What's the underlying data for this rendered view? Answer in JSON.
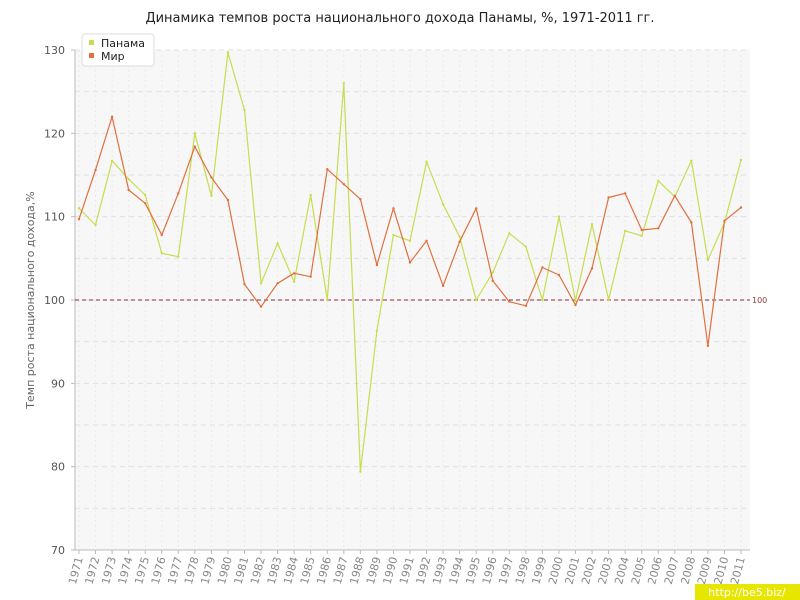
{
  "chart_data": {
    "type": "line",
    "title": "Динамика темпов роста национального дохода Панамы, %, 1971-2011 гг.",
    "ylabel": "Темп роста национального дохода,%",
    "xlabel": "",
    "ylim": [
      70,
      130
    ],
    "yticks": [
      70,
      80,
      90,
      100,
      110,
      120,
      130
    ],
    "grid": true,
    "legend_position": "top-left",
    "x": [
      "1971",
      "1972",
      "1973",
      "1974",
      "1975",
      "1976",
      "1977",
      "1978",
      "1979",
      "1980",
      "1981",
      "1982",
      "1983",
      "1984",
      "1985",
      "1986",
      "1987",
      "1988",
      "1989",
      "1990",
      "1991",
      "1992",
      "1993",
      "1994",
      "1995",
      "1996",
      "1997",
      "1998",
      "1999",
      "2000",
      "2001",
      "2002",
      "2003",
      "2004",
      "2005",
      "2006",
      "2007",
      "2008",
      "2009",
      "2010",
      "2011"
    ],
    "series": [
      {
        "name": "Панама",
        "color": "#c8dc50",
        "values": [
          111.0,
          109.0,
          116.7,
          114.5,
          112.6,
          105.6,
          105.2,
          120.0,
          112.5,
          129.7,
          122.8,
          102.0,
          106.8,
          102.2,
          112.6,
          100.0,
          126.0,
          79.4,
          96.3,
          107.8,
          107.1,
          116.6,
          111.5,
          107.6,
          100.0,
          103.3,
          108.0,
          106.4,
          100.0,
          110.0,
          99.9,
          109.1,
          100.0,
          108.3,
          107.7,
          114.3,
          112.4,
          116.7,
          104.8,
          109.3,
          116.8
        ]
      },
      {
        "name": "Мир",
        "color": "#e07040",
        "values": [
          109.7,
          115.6,
          122.0,
          113.2,
          111.6,
          107.8,
          112.8,
          118.4,
          114.7,
          112.0,
          101.9,
          99.2,
          102.0,
          103.2,
          102.8,
          115.7,
          113.9,
          112.1,
          104.2,
          111.0,
          104.5,
          107.1,
          101.7,
          107.0,
          111.0,
          102.3,
          99.8,
          99.3,
          103.9,
          103.0,
          99.4,
          103.8,
          112.3,
          112.8,
          108.4,
          108.6,
          112.5,
          109.3,
          94.5,
          109.5,
          111.1
        ]
      }
    ],
    "reference_line": {
      "value": 100,
      "label": "100",
      "color": "#8b2a3a"
    }
  },
  "watermark": "http://be5.biz/"
}
